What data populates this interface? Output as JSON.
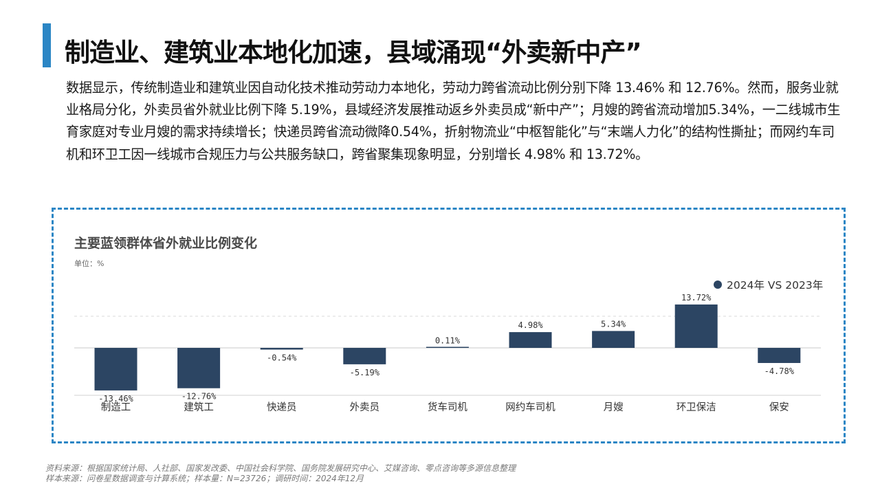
{
  "colors": {
    "accent": "#2b86c5",
    "bar": "#2c4563",
    "frame": "#2b86c5"
  },
  "page": {
    "title": "制造业、建筑业本地化加速，县域涌现“外卖新中产”",
    "intro": "数据显示，传统制造业和建筑业因自动化技术推动劳动力本地化，劳动力跨省流动比例分别下降 13.46% 和 12.76%。然而，服务业就业格局分化，外卖员省外就业比例下降 5.19%，县域经济发展推动返乡外卖员成“新中产”；月嫂的跨省流动增加5.34%，一二线城市生育家庭对专业月嫂的需求持续增长；快递员跨省流动微降0.54%，折射物流业“中枢智能化”与“末端人力化”的结构性撕扯；而网约车司机和环卫工因一线城市合规压力与公共服务缺口，跨省聚集现象明显，分别增长 4.98% 和 13.72%。"
  },
  "chart": {
    "title": "主要蓝领群体省外就业比例变化",
    "unit": "单位：%"
  },
  "chart_data": {
    "type": "bar",
    "title": "主要蓝领群体省外就业比例变化",
    "unit": "单位：%",
    "categories": [
      "制造工",
      "建筑工",
      "快递员",
      "外卖员",
      "货车司机",
      "网约车司机",
      "月嫂",
      "环卫保洁",
      "保安"
    ],
    "series": [
      {
        "name": "2024年 VS 2023年",
        "values": [
          -13.46,
          -12.76,
          -0.54,
          -5.19,
          0.11,
          4.98,
          5.34,
          13.72,
          -4.78
        ],
        "labels": [
          "-13.46%",
          "-12.76%",
          "-0.54%",
          "-5.19%",
          "0.11%",
          "4.98%",
          "5.34%",
          "13.72%",
          "-4.78%"
        ]
      }
    ],
    "ylim": [
      -15,
      15
    ],
    "grid": true,
    "legend_position": "top-right"
  },
  "footer": {
    "line1": "资料来源：根据国家统计局、人社部、国家发改委、中国社会科学院、国务院发展研究中心、艾媒咨询、零点咨询等多源信息整理",
    "line2": "样本来源：问卷星数据调查与计算系统；样本量：N=23726；调研时间：2024年12月"
  }
}
